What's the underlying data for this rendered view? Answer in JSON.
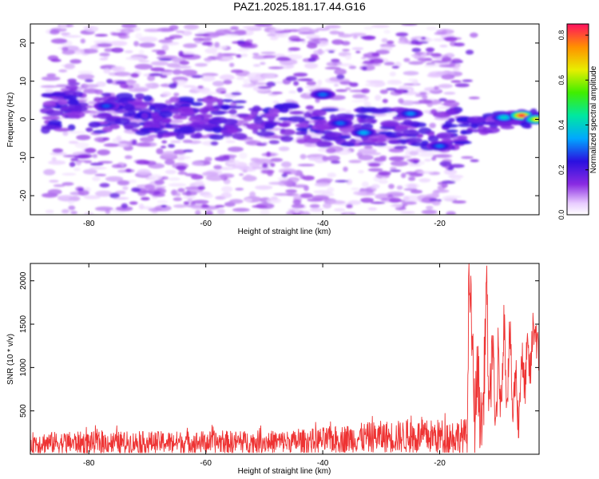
{
  "title": "PAZ1.2025.181.17.44.G16",
  "colors": {
    "snr_line": "#ee3333",
    "axis": "#000000",
    "background": "#ffffff"
  },
  "chart_data": [
    {
      "type": "heatmap",
      "xlabel": "Height of straight line (km)",
      "ylabel": "Frequency (Hz)",
      "xlim": [
        -90,
        -3
      ],
      "ylim": [
        -25,
        25
      ],
      "xticks": [
        -80,
        -60,
        -40,
        -20
      ],
      "yticks": [
        -20,
        -10,
        0,
        10,
        20
      ],
      "xtick_labels": [
        "-80",
        "-60",
        "-40",
        "-20"
      ],
      "ytick_labels": [
        "-20",
        "-10",
        "0",
        "10",
        "20"
      ],
      "colorbar": {
        "label": "Normalized spectral amplitude",
        "range": [
          0,
          0.85
        ],
        "ticks": [
          0.0,
          0.2,
          0.4,
          0.6,
          0.8
        ],
        "tick_labels": [
          "0.0",
          "0.2",
          "0.4",
          "0.6",
          "0.8"
        ],
        "colormap": "rainbow"
      },
      "signal_ridge": [
        {
          "x": -85,
          "y": 2
        },
        {
          "x": -75,
          "y": 1.5
        },
        {
          "x": -65,
          "y": 0.5
        },
        {
          "x": -55,
          "y": 0
        },
        {
          "x": -45,
          "y": -0.5
        },
        {
          "x": -38,
          "y": -2
        },
        {
          "x": -30,
          "y": -2
        },
        {
          "x": -25,
          "y": -2.5
        },
        {
          "x": -20,
          "y": -3
        },
        {
          "x": -15,
          "y": -2
        },
        {
          "x": -10,
          "y": -0.5
        },
        {
          "x": -7,
          "y": 0.5
        },
        {
          "x": -4,
          "y": 0
        }
      ],
      "peaks": [
        {
          "x": -77,
          "y": 3.5,
          "value": 0.28
        },
        {
          "x": -40,
          "y": 6.5,
          "value": 0.3
        },
        {
          "x": -37,
          "y": -1,
          "value": 0.3
        },
        {
          "x": -33,
          "y": -3.5,
          "value": 0.35
        },
        {
          "x": -25,
          "y": 1.5,
          "value": 0.32
        },
        {
          "x": -20,
          "y": -7,
          "value": 0.3
        },
        {
          "x": -9,
          "y": 0.5,
          "value": 0.4
        },
        {
          "x": -6,
          "y": 1,
          "value": 0.82
        },
        {
          "x": -3.5,
          "y": 0,
          "value": 0.65
        }
      ]
    },
    {
      "type": "line",
      "xlabel": "Height of straight line (km)",
      "ylabel": "SNR (10 * v/v)",
      "xlim": [
        -90,
        -3
      ],
      "ylim": [
        0,
        2200
      ],
      "xticks": [
        -80,
        -60,
        -40,
        -20
      ],
      "yticks": [
        500,
        1000,
        1500,
        2000
      ],
      "xtick_labels": [
        "-80",
        "-60",
        "-40",
        "-20"
      ],
      "ytick_labels": [
        "500",
        "1000",
        "1500",
        "2000"
      ],
      "series": [
        {
          "color": "#ee3333",
          "x": [
            -90,
            -85,
            -80,
            -75,
            -70,
            -65,
            -60,
            -55,
            -50,
            -45,
            -42,
            -40,
            -35,
            -30,
            -28,
            -25,
            -22,
            -20,
            -18,
            -16,
            -15.2,
            -15,
            -14.5,
            -14,
            -13.5,
            -13,
            -12.5,
            -12,
            -11.5,
            -11,
            -10.5,
            -10,
            -9.5,
            -9,
            -8.5,
            -8,
            -7.5,
            -7,
            -6.5,
            -6,
            -5.5,
            -5,
            -4.5,
            -4,
            -3.5,
            -3
          ],
          "y": [
            130,
            140,
            140,
            150,
            150,
            145,
            150,
            150,
            155,
            170,
            200,
            220,
            250,
            260,
            280,
            300,
            300,
            300,
            180,
            150,
            400,
            2200,
            1400,
            400,
            1000,
            300,
            600,
            2050,
            300,
            1400,
            200,
            1100,
            500,
            1600,
            600,
            1450,
            400,
            1000,
            300,
            1200,
            700,
            1200,
            900,
            1500,
            1400,
            1000
          ],
          "noise_band": [
            {
              "x": -90,
              "low": 30,
              "high": 280
            },
            {
              "x": -45,
              "low": 40,
              "high": 300
            },
            {
              "x": -30,
              "low": 50,
              "high": 420
            },
            {
              "x": -16,
              "low": 40,
              "high": 450
            }
          ]
        }
      ]
    }
  ]
}
